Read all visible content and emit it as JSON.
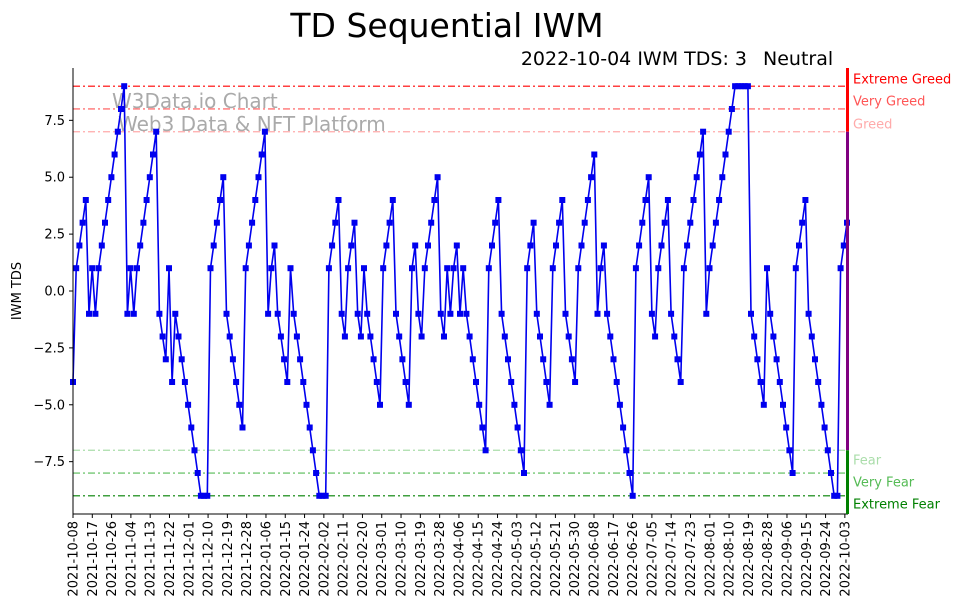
{
  "chart_data": {
    "type": "line",
    "title": "TD Sequential IWM",
    "subtitle": {
      "date": "2022-10-04",
      "ticker": "IWM",
      "label": "TDS:",
      "value": "3",
      "sentiment": "Neutral"
    },
    "ylabel": "IWM TDS",
    "ylim": [
      -9.8,
      9.8
    ],
    "yticks": [
      -7.5,
      -5.0,
      -2.5,
      0.0,
      2.5,
      5.0,
      7.5
    ],
    "ytick_labels": [
      "−7.5",
      "−5.0",
      "−2.5",
      "0.0",
      "2.5",
      "5.0",
      "7.5"
    ],
    "xticks": [
      "2021-10-08",
      "2021-10-17",
      "2021-10-26",
      "2021-11-04",
      "2021-11-13",
      "2021-11-22",
      "2021-12-01",
      "2021-12-10",
      "2021-12-19",
      "2021-12-28",
      "2022-01-06",
      "2022-01-15",
      "2022-01-24",
      "2022-02-02",
      "2022-02-11",
      "2022-02-20",
      "2022-03-01",
      "2022-03-10",
      "2022-03-19",
      "2022-03-28",
      "2022-04-06",
      "2022-04-15",
      "2022-04-24",
      "2022-05-03",
      "2022-05-12",
      "2022-05-21",
      "2022-05-30",
      "2022-06-08",
      "2022-06-17",
      "2022-06-26",
      "2022-07-05",
      "2022-07-14",
      "2022-07-23",
      "2022-08-01",
      "2022-08-10",
      "2022-08-19",
      "2022-08-28",
      "2022-09-06",
      "2022-09-15",
      "2022-09-24",
      "2022-10-03"
    ],
    "x_start": "2021-10-08",
    "x_end": "2022-10-04",
    "series": [
      {
        "color": "#0000ee",
        "values": [
          -4,
          1,
          2,
          3,
          4,
          -1,
          1,
          -1,
          1,
          2,
          3,
          4,
          5,
          6,
          7,
          8,
          9,
          -1,
          1,
          -1,
          1,
          2,
          3,
          4,
          5,
          6,
          7,
          -1,
          -2,
          -3,
          1,
          -4,
          -1,
          -2,
          -3,
          -4,
          -5,
          -6,
          -7,
          -8,
          -9,
          -9,
          -9,
          1,
          2,
          3,
          4,
          5,
          -1,
          -2,
          -3,
          -4,
          -5,
          -6,
          1,
          2,
          3,
          4,
          5,
          6,
          7,
          -1,
          1,
          2,
          -1,
          -2,
          -3,
          -4,
          1,
          -1,
          -2,
          -3,
          -4,
          -5,
          -6,
          -7,
          -8,
          -9,
          -9,
          -9,
          1,
          2,
          3,
          4,
          -1,
          -2,
          1,
          2,
          3,
          -1,
          -2,
          1,
          -1,
          -2,
          -3,
          -4,
          -5,
          1,
          2,
          3,
          4,
          -1,
          -2,
          -3,
          -4,
          -5,
          1,
          2,
          -1,
          -2,
          1,
          2,
          3,
          4,
          5,
          -1,
          -2,
          1,
          -1,
          1,
          2,
          -1,
          1,
          -1,
          -2,
          -3,
          -4,
          -5,
          -6,
          -7,
          1,
          2,
          3,
          4,
          -1,
          -2,
          -3,
          -4,
          -5,
          -6,
          -7,
          -8,
          1,
          2,
          3,
          -1,
          -2,
          -3,
          -4,
          -5,
          1,
          2,
          3,
          4,
          -1,
          -2,
          -3,
          -4,
          1,
          2,
          3,
          4,
          5,
          6,
          -1,
          1,
          2,
          -1,
          -2,
          -3,
          -4,
          -5,
          -6,
          -7,
          -8,
          -9,
          1,
          2,
          3,
          4,
          5,
          -1,
          -2,
          1,
          2,
          3,
          4,
          -1,
          -2,
          -3,
          -4,
          1,
          2,
          3,
          4,
          5,
          6,
          7,
          -1,
          1,
          2,
          3,
          4,
          5,
          6,
          7,
          8,
          9,
          9,
          9,
          9,
          9,
          -1,
          -2,
          -3,
          -4,
          -5,
          1,
          -1,
          -2,
          -3,
          -4,
          -5,
          -6,
          -7,
          -8,
          1,
          2,
          3,
          4,
          -1,
          -2,
          -3,
          -4,
          -5,
          -6,
          -7,
          -8,
          -9,
          -9,
          1,
          2,
          3
        ]
      }
    ],
    "zones": [
      {
        "label": "Extreme Greed",
        "value": 9,
        "color": "#ff0000"
      },
      {
        "label": "Very Greed",
        "value": 8,
        "color": "#ff5555"
      },
      {
        "label": "Greed",
        "value": 7,
        "color": "#ffaaaa"
      },
      {
        "label": "Fear",
        "value": -7,
        "color": "#aaddaa"
      },
      {
        "label": "Very Fear",
        "value": -8,
        "color": "#55bb55"
      },
      {
        "label": "Extreme Fear",
        "value": -9,
        "color": "#008000"
      }
    ],
    "colors": {
      "neutral": "#800080",
      "greed_bar": "#ff0000",
      "fear_bar": "#008000",
      "line": "#0000ee"
    },
    "watermark": [
      "W3Data.io Chart",
      "Web3 Data & NFT Platform"
    ],
    "grid": false,
    "legend": "none"
  }
}
